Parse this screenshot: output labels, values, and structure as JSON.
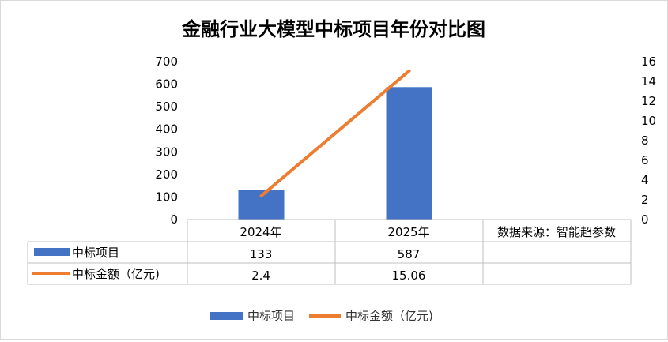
{
  "chart_data": {
    "type": "bar",
    "title": "金融行业大模型中标项目年份对比图",
    "categories": [
      "2024年",
      "2025年"
    ],
    "note": "数据来源：智能超参数",
    "series": [
      {
        "name": "中标项目",
        "type": "bar",
        "axis": "left",
        "values": [
          133,
          587
        ],
        "value_labels": [
          "133",
          "587"
        ]
      },
      {
        "name": "中标金额（亿元)",
        "type": "line",
        "axis": "right",
        "values": [
          2.4,
          15.06
        ],
        "value_labels": [
          "2.4",
          "15.06"
        ]
      }
    ],
    "y_left": {
      "range": [
        0,
        700
      ],
      "ticks": [
        "0",
        "100",
        "200",
        "300",
        "400",
        "500",
        "600",
        "700"
      ]
    },
    "y_right": {
      "range": [
        0,
        16
      ],
      "ticks": [
        "0",
        "2",
        "4",
        "6",
        "8",
        "10",
        "12",
        "14",
        "16"
      ]
    },
    "legend_position": "bottom",
    "grid": false,
    "colors": {
      "bar": "#4472c4",
      "line": "#ed7d31",
      "table_border": "#bfbfbf",
      "frame": "#d9d9d9",
      "text": "#000000"
    }
  }
}
